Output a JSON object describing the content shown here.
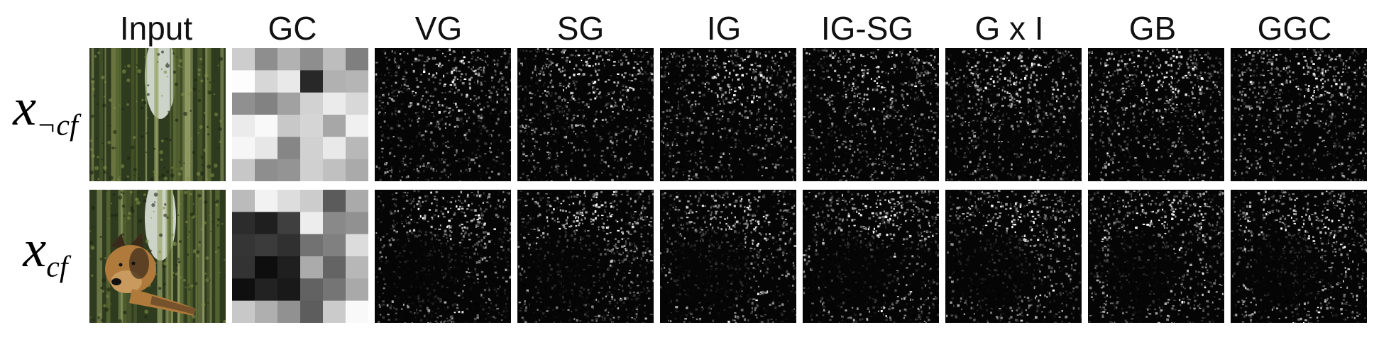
{
  "columns": [
    "Input",
    "GC",
    "VG",
    "SG",
    "IG",
    "IG-SG",
    "G x I",
    "GB",
    "GGC"
  ],
  "rows": [
    {
      "label_main": "x",
      "label_sub": "¬cf",
      "cells": [
        {
          "kind": "photo",
          "description_icon": "bamboo-forest-image"
        },
        {
          "kind": "gradcam",
          "description_icon": "gradcam-heatmap"
        },
        {
          "kind": "saliency",
          "description_icon": "saliency-map"
        },
        {
          "kind": "saliency",
          "description_icon": "saliency-map"
        },
        {
          "kind": "saliency",
          "description_icon": "saliency-map"
        },
        {
          "kind": "saliency",
          "description_icon": "saliency-map"
        },
        {
          "kind": "saliency",
          "description_icon": "saliency-map"
        },
        {
          "kind": "saliency",
          "description_icon": "saliency-map"
        },
        {
          "kind": "saliency",
          "description_icon": "saliency-map"
        }
      ]
    },
    {
      "label_main": "x",
      "label_sub": "cf",
      "cells": [
        {
          "kind": "photo-dog",
          "description_icon": "bamboo-forest-with-dog-image"
        },
        {
          "kind": "gradcam",
          "description_icon": "gradcam-heatmap"
        },
        {
          "kind": "saliency",
          "description_icon": "saliency-map"
        },
        {
          "kind": "saliency",
          "description_icon": "saliency-map"
        },
        {
          "kind": "saliency",
          "description_icon": "saliency-map"
        },
        {
          "kind": "saliency",
          "description_icon": "saliency-map"
        },
        {
          "kind": "saliency",
          "description_icon": "saliency-map"
        },
        {
          "kind": "saliency",
          "description_icon": "saliency-map"
        },
        {
          "kind": "saliency",
          "description_icon": "saliency-map"
        }
      ]
    }
  ],
  "colors": {
    "background": "#ffffff",
    "label": "#111111",
    "foliage_dark": "#2f3b1e",
    "foliage_light": "#9aa56a",
    "sky": "#e8eee6",
    "dog_tan": "#b07a3c",
    "dog_dark": "#3a2a1a"
  }
}
